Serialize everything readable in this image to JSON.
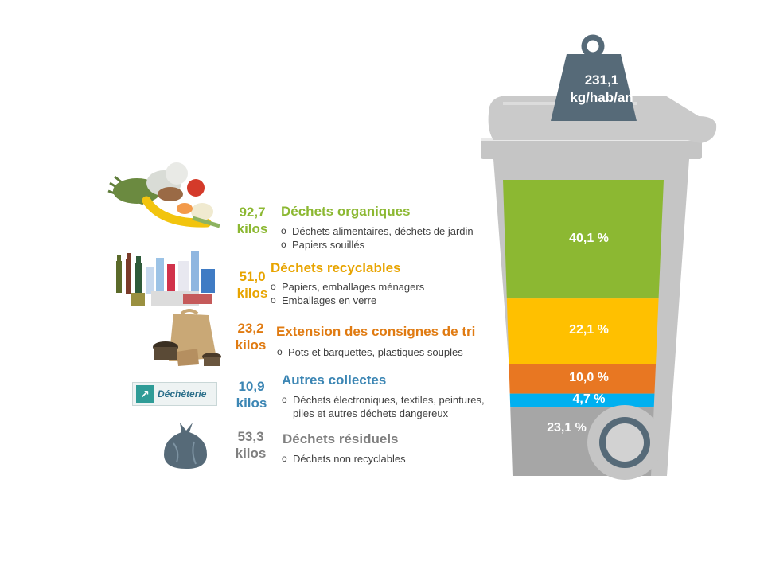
{
  "header": {
    "weight_value": "231,1",
    "weight_unit": "kg/hab/an"
  },
  "categories": [
    {
      "id": "organiques",
      "kilos": "92,7",
      "kilos_unit": "kilos",
      "title": "Déchets organiques",
      "color": "#8CB832",
      "bullets": [
        "Déchets alimentaires, déchets de jardin",
        "Papiers souillés"
      ],
      "icon": "organic-waste-icon"
    },
    {
      "id": "recyclables",
      "kilos": "51,0",
      "kilos_unit": "kilos",
      "title": "Déchets recyclables",
      "color": "#E8A400",
      "bullets": [
        "Papiers, emballages ménagers",
        "Emballages en verre"
      ],
      "icon": "recyclables-icon"
    },
    {
      "id": "consignes",
      "kilos": "23,2",
      "kilos_unit": "kilos",
      "title": "Extension des consignes de tri",
      "color": "#E07B12",
      "bullets": [
        "Pots et barquettes, plastiques souples"
      ],
      "icon": "plastic-packaging-icon"
    },
    {
      "id": "autres",
      "kilos": "10,9",
      "kilos_unit": "kilos",
      "title": "Autres collectes",
      "color": "#3C86B4",
      "bullets": [
        "Déchets électroniques, textiles, peintures,",
        "piles et autres déchets dangereux"
      ],
      "icon": "dechetterie-logo",
      "logo_text": "Déchèterie"
    },
    {
      "id": "residuels",
      "kilos": "53,3",
      "kilos_unit": "kilos",
      "title": "Déchets résiduels",
      "color": "#7F7F7F",
      "bullets": [
        "Déchets non recyclables"
      ],
      "icon": "trash-bag-icon"
    }
  ],
  "bullet_marker": "o",
  "chart_data": {
    "type": "bar",
    "orientation": "stacked-vertical",
    "title": "",
    "unit": "%",
    "categories": [
      "Déchets organiques",
      "Déchets recyclables",
      "Extension des consignes de tri",
      "Autres collectes",
      "Déchets résiduels"
    ],
    "values": [
      40.1,
      22.1,
      10.0,
      4.7,
      23.1
    ],
    "value_labels": [
      "40,1 %",
      "22,1 %",
      "10,0 %",
      "4,7 %",
      "23,1 %"
    ],
    "kilos": [
      92.7,
      51.0,
      23.2,
      10.9,
      53.3
    ],
    "colors": [
      "#8CB832",
      "#FFC000",
      "#E87722",
      "#00B0F0",
      "#A6A6A6"
    ],
    "total": "231,1 kg/hab/an",
    "ylim": [
      0,
      100
    ]
  }
}
